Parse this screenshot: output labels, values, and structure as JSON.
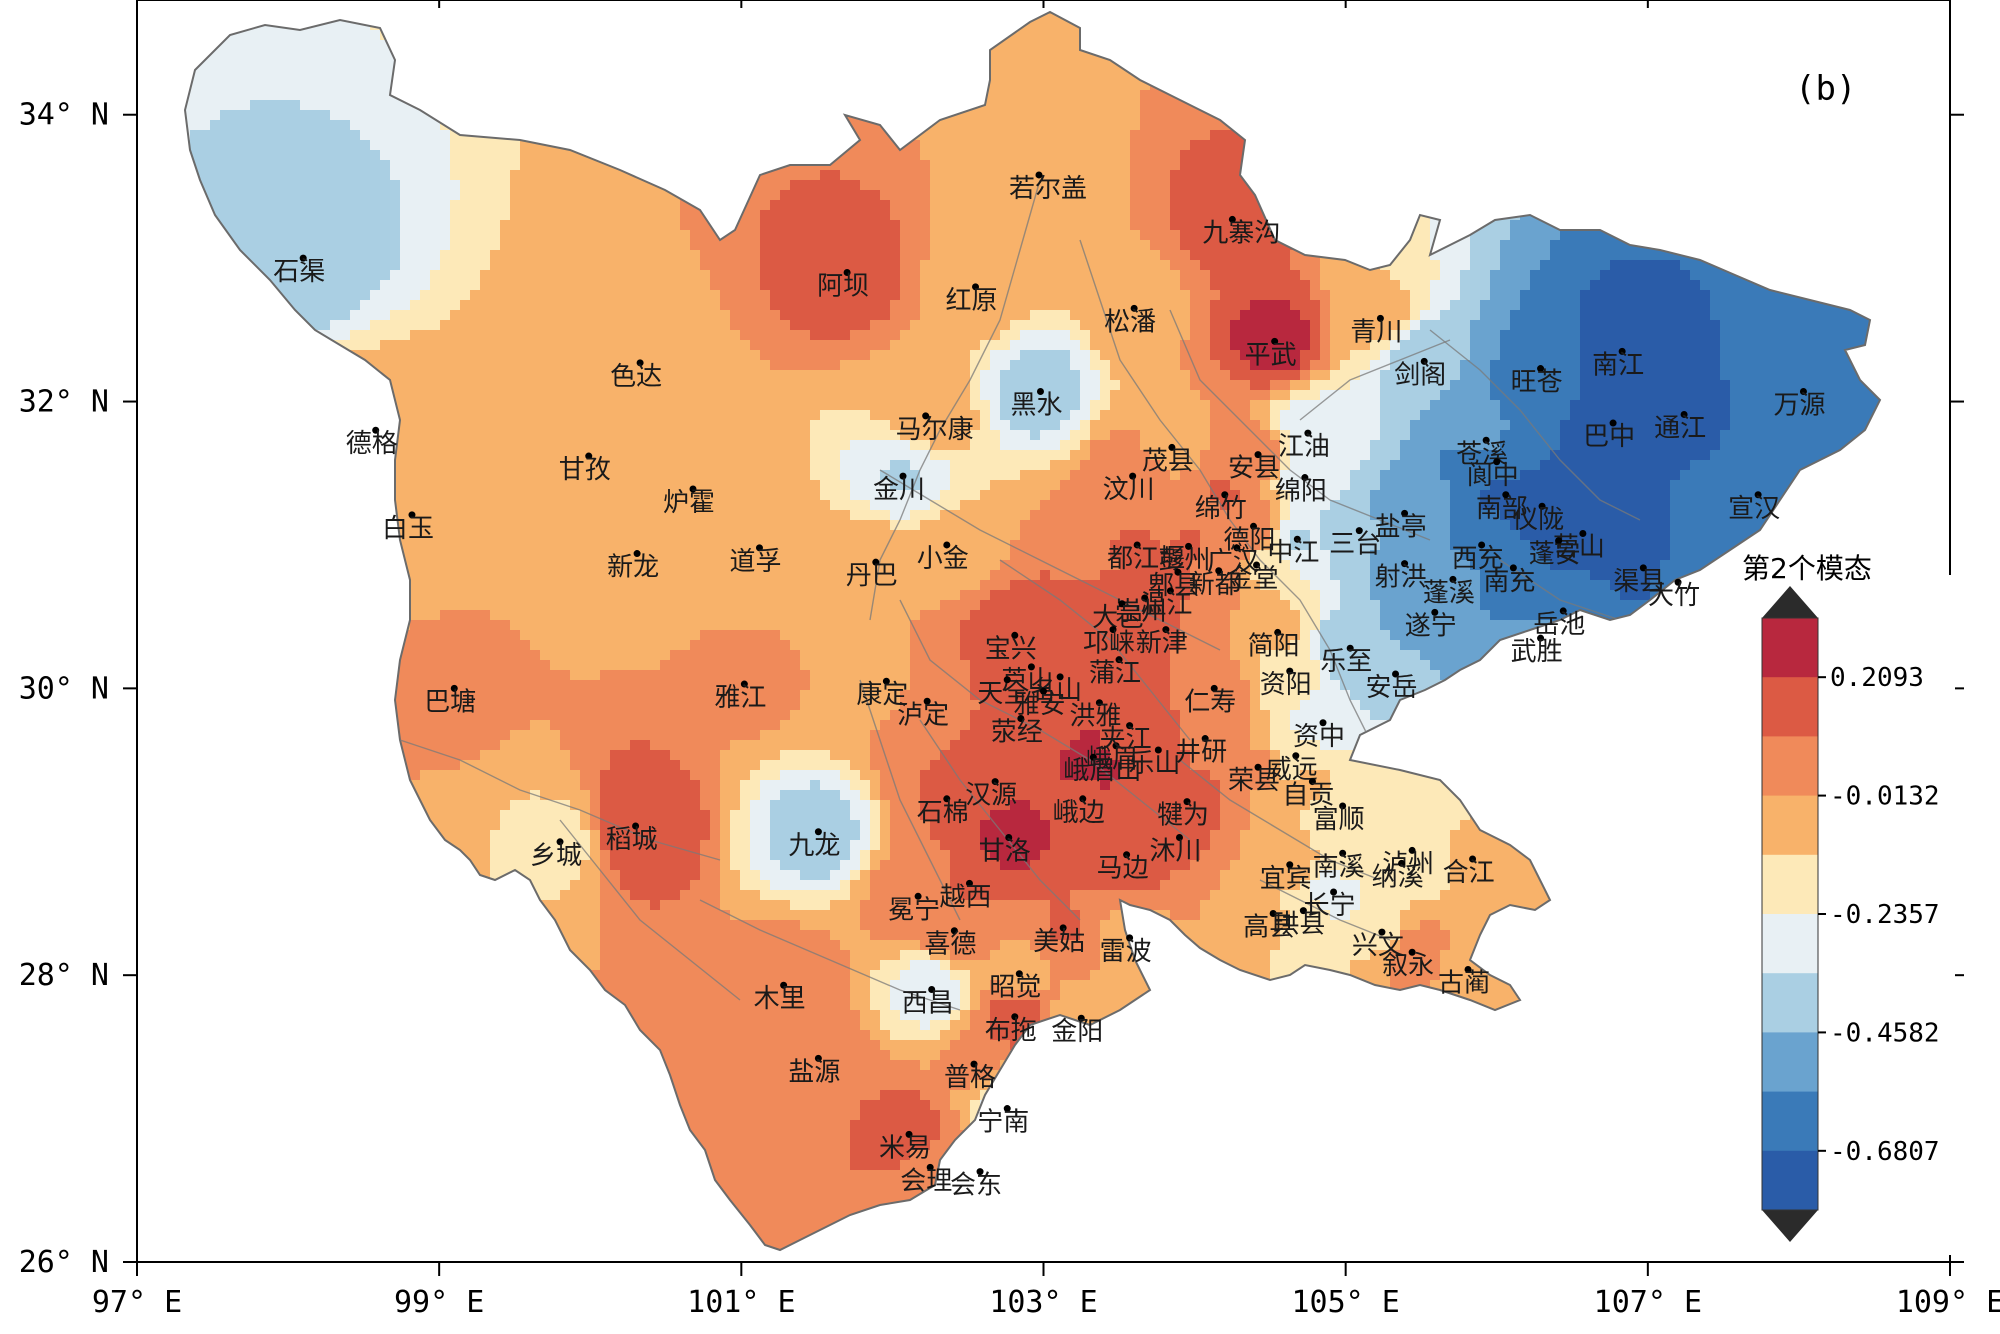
{
  "panel_label": "(b)",
  "axes": {
    "lon_min": 97,
    "lon_max": 109,
    "lat_min": 26,
    "lat_max": 34.8,
    "x_ticks": [
      "97° E",
      "99° E",
      "101° E",
      "103° E",
      "105° E",
      "107° E",
      "109° E"
    ],
    "x_tick_values": [
      97,
      99,
      101,
      103,
      105,
      107,
      109
    ],
    "y_ticks": [
      "26° N",
      "28° N",
      "30° N",
      "32° N",
      "34° N"
    ],
    "y_tick_values": [
      26,
      28,
      30,
      32,
      34
    ]
  },
  "colorbar": {
    "title": "第2个模态",
    "colors": [
      "#2a5ca8",
      "#3a7ab8",
      "#6aa3cf",
      "#aacfe3",
      "#e8f0f4",
      "#fde9b8",
      "#f8b26a",
      "#f08a5a",
      "#dc5a44",
      "#b8283e"
    ],
    "labels": [
      "0.2093",
      "-0.0132",
      "-0.2357",
      "-0.4582",
      "-0.6807"
    ],
    "label_values": [
      0.2093,
      -0.0132,
      -0.2357,
      -0.4582,
      -0.6807
    ],
    "min": -0.7919,
    "max": 0.3205
  },
  "cities": [
    {
      "name": "石渠",
      "lon": 98.1,
      "lat": 33.0,
      "v": -0.4
    },
    {
      "name": "若尔盖",
      "lon": 102.97,
      "lat": 33.58,
      "v": -0.05
    },
    {
      "name": "阿坝",
      "lon": 101.7,
      "lat": 32.9,
      "v": 0.15
    },
    {
      "name": "红原",
      "lon": 102.55,
      "lat": 32.8,
      "v": -0.05
    },
    {
      "name": "九寨沟",
      "lon": 104.25,
      "lat": 33.27,
      "v": 0.15
    },
    {
      "name": "松潘",
      "lon": 103.6,
      "lat": 32.65,
      "v": -0.05
    },
    {
      "name": "色达",
      "lon": 100.33,
      "lat": 32.27,
      "v": -0.05
    },
    {
      "name": "平武",
      "lon": 104.53,
      "lat": 32.42,
      "v": 0.25
    },
    {
      "name": "青川",
      "lon": 105.23,
      "lat": 32.58,
      "v": -0.1
    },
    {
      "name": "黑水",
      "lon": 102.98,
      "lat": 32.07,
      "v": -0.4
    },
    {
      "name": "剑阁",
      "lon": 105.52,
      "lat": 32.28,
      "v": -0.45
    },
    {
      "name": "旺苍",
      "lon": 106.29,
      "lat": 32.23,
      "v": -0.6
    },
    {
      "name": "南江",
      "lon": 106.83,
      "lat": 32.35,
      "v": -0.75
    },
    {
      "name": "德格",
      "lon": 98.58,
      "lat": 31.8,
      "v": -0.05
    },
    {
      "name": "马尔康",
      "lon": 102.22,
      "lat": 31.9,
      "v": -0.05
    },
    {
      "name": "茂县",
      "lon": 103.85,
      "lat": 31.68,
      "v": -0.05
    },
    {
      "name": "安县",
      "lon": 104.42,
      "lat": 31.63,
      "v": 0.05
    },
    {
      "name": "江油",
      "lon": 104.75,
      "lat": 31.78,
      "v": -0.3
    },
    {
      "name": "苍溪",
      "lon": 105.93,
      "lat": 31.73,
      "v": -0.55
    },
    {
      "name": "阆中",
      "lon": 106.0,
      "lat": 31.58,
      "v": -0.65
    },
    {
      "name": "巴中",
      "lon": 106.77,
      "lat": 31.85,
      "v": -0.75
    },
    {
      "name": "通江",
      "lon": 107.24,
      "lat": 31.91,
      "v": -0.7
    },
    {
      "name": "万源",
      "lon": 108.03,
      "lat": 32.07,
      "v": -0.6
    },
    {
      "name": "甘孜",
      "lon": 99.99,
      "lat": 31.62,
      "v": -0.05
    },
    {
      "name": "金川",
      "lon": 102.07,
      "lat": 31.48,
      "v": -0.35
    },
    {
      "name": "汶川",
      "lon": 103.59,
      "lat": 31.48,
      "v": 0.05
    },
    {
      "name": "绵竹",
      "lon": 104.2,
      "lat": 31.35,
      "v": 0.1
    },
    {
      "name": "德阳",
      "lon": 104.39,
      "lat": 31.13,
      "v": 0.05
    },
    {
      "name": "绵阳",
      "lon": 104.73,
      "lat": 31.47,
      "v": -0.3
    },
    {
      "name": "盐亭",
      "lon": 105.39,
      "lat": 31.22,
      "v": -0.5
    },
    {
      "name": "仪陇",
      "lon": 106.3,
      "lat": 31.27,
      "v": -0.75
    },
    {
      "name": "宣汉",
      "lon": 107.73,
      "lat": 31.35,
      "v": -0.6
    },
    {
      "name": "白玉",
      "lon": 98.82,
      "lat": 31.21,
      "v": -0.05
    },
    {
      "name": "炉霍",
      "lon": 100.68,
      "lat": 31.39,
      "v": -0.05
    },
    {
      "name": "小金",
      "lon": 102.36,
      "lat": 31.0,
      "v": -0.1
    },
    {
      "name": "都江堰",
      "lon": 103.62,
      "lat": 31.0,
      "v": 0.1
    },
    {
      "name": "彭州",
      "lon": 103.96,
      "lat": 30.99,
      "v": 0.1
    },
    {
      "name": "广汉",
      "lon": 104.28,
      "lat": 30.98,
      "v": 0.05
    },
    {
      "name": "中江",
      "lon": 104.68,
      "lat": 31.04,
      "v": -0.35
    },
    {
      "name": "三台",
      "lon": 105.09,
      "lat": 31.1,
      "v": -0.45
    },
    {
      "name": "南部",
      "lon": 106.06,
      "lat": 31.35,
      "v": -0.7
    },
    {
      "name": "营山",
      "lon": 106.57,
      "lat": 31.08,
      "v": -0.75
    },
    {
      "name": "西充",
      "lon": 105.9,
      "lat": 31.0,
      "v": -0.6
    },
    {
      "name": "南充",
      "lon": 106.11,
      "lat": 30.84,
      "v": -0.65
    },
    {
      "name": "渠县",
      "lon": 106.97,
      "lat": 30.84,
      "v": -0.7
    },
    {
      "name": "大竹",
      "lon": 107.2,
      "lat": 30.74,
      "v": -0.65
    },
    {
      "name": "新龙",
      "lon": 100.31,
      "lat": 30.94,
      "v": -0.05
    },
    {
      "name": "道孚",
      "lon": 101.12,
      "lat": 30.98,
      "v": -0.05
    },
    {
      "name": "丹巴",
      "lon": 101.89,
      "lat": 30.88,
      "v": -0.05
    },
    {
      "name": "宝兴",
      "lon": 102.81,
      "lat": 30.37,
      "v": 0.15
    },
    {
      "name": "崇州",
      "lon": 103.67,
      "lat": 30.63,
      "v": 0.1
    },
    {
      "name": "郫县",
      "lon": 103.89,
      "lat": 30.81,
      "v": 0.1
    },
    {
      "name": "新都",
      "lon": 104.16,
      "lat": 30.82,
      "v": 0.05
    },
    {
      "name": "金堂",
      "lon": 104.41,
      "lat": 30.86,
      "v": -0.15
    },
    {
      "name": "射洪",
      "lon": 105.39,
      "lat": 30.87,
      "v": -0.5
    },
    {
      "name": "蓬溪",
      "lon": 105.71,
      "lat": 30.76,
      "v": -0.55
    },
    {
      "name": "蓬安",
      "lon": 106.41,
      "lat": 31.03,
      "v": -0.7
    },
    {
      "name": "岳池",
      "lon": 106.44,
      "lat": 30.54,
      "v": -0.6
    },
    {
      "name": "武胜",
      "lon": 106.29,
      "lat": 30.35,
      "v": -0.55
    },
    {
      "name": "芦山",
      "lon": 102.92,
      "lat": 30.15,
      "v": 0.2
    },
    {
      "name": "大邑",
      "lon": 103.52,
      "lat": 30.59,
      "v": 0.1
    },
    {
      "name": "温江",
      "lon": 103.84,
      "lat": 30.68,
      "v": 0.1
    },
    {
      "name": "新津",
      "lon": 103.81,
      "lat": 30.41,
      "v": 0.1
    },
    {
      "name": "简阳",
      "lon": 104.55,
      "lat": 30.39,
      "v": -0.1
    },
    {
      "name": "资阳",
      "lon": 104.63,
      "lat": 30.12,
      "v": -0.2
    },
    {
      "name": "乐至",
      "lon": 105.03,
      "lat": 30.28,
      "v": -0.45
    },
    {
      "name": "遂宁",
      "lon": 105.59,
      "lat": 30.53,
      "v": -0.55
    },
    {
      "name": "康定",
      "lon": 101.96,
      "lat": 30.05,
      "v": -0.05
    },
    {
      "name": "名山",
      "lon": 103.11,
      "lat": 30.08,
      "v": 0.1
    },
    {
      "name": "邛崃",
      "lon": 103.46,
      "lat": 30.41,
      "v": 0.1
    },
    {
      "name": "天全",
      "lon": 102.76,
      "lat": 30.06,
      "v": 0.1
    },
    {
      "name": "雅安",
      "lon": 103.0,
      "lat": 29.98,
      "v": 0.1
    },
    {
      "name": "洪雅",
      "lon": 103.37,
      "lat": 29.9,
      "v": 0.15
    },
    {
      "name": "蒲江",
      "lon": 103.5,
      "lat": 30.2,
      "v": 0.15
    },
    {
      "name": "仁寿",
      "lon": 104.13,
      "lat": 30.0,
      "v": 0.05
    },
    {
      "name": "资中",
      "lon": 104.85,
      "lat": 29.76,
      "v": -0.3
    },
    {
      "name": "安岳",
      "lon": 105.33,
      "lat": 30.1,
      "v": -0.45
    },
    {
      "name": "巴塘",
      "lon": 99.1,
      "lat": 30.0,
      "v": 0.0
    },
    {
      "name": "雅江",
      "lon": 101.02,
      "lat": 30.03,
      "v": 0.0
    },
    {
      "name": "泸定",
      "lon": 102.23,
      "lat": 29.91,
      "v": 0.05
    },
    {
      "name": "荥经",
      "lon": 102.85,
      "lat": 29.79,
      "v": 0.1
    },
    {
      "name": "峨眉",
      "lon": 103.48,
      "lat": 29.6,
      "v": 0.2
    },
    {
      "name": "夹江",
      "lon": 103.57,
      "lat": 29.74,
      "v": 0.15
    },
    {
      "name": "井研",
      "lon": 104.07,
      "lat": 29.65,
      "v": 0.05
    },
    {
      "name": "荣县",
      "lon": 104.42,
      "lat": 29.45,
      "v": 0.0
    },
    {
      "name": "威远",
      "lon": 104.67,
      "lat": 29.53,
      "v": -0.2
    },
    {
      "name": "汉源",
      "lon": 102.68,
      "lat": 29.35,
      "v": 0.2
    },
    {
      "name": "峨眉山",
      "lon": 103.33,
      "lat": 29.52,
      "v": 0.25
    },
    {
      "name": "犍为",
      "lon": 103.95,
      "lat": 29.21,
      "v": 0.15
    },
    {
      "name": "自贡",
      "lon": 104.78,
      "lat": 29.35,
      "v": -0.1
    },
    {
      "name": "富顺",
      "lon": 104.98,
      "lat": 29.18,
      "v": -0.2
    },
    {
      "name": "石棉",
      "lon": 102.36,
      "lat": 29.23,
      "v": 0.1
    },
    {
      "name": "甘洛",
      "lon": 102.77,
      "lat": 28.96,
      "v": 0.25
    },
    {
      "name": "峨边",
      "lon": 103.26,
      "lat": 29.23,
      "v": 0.2
    },
    {
      "name": "乐山",
      "lon": 103.76,
      "lat": 29.57,
      "v": 0.15
    },
    {
      "name": "宜宾",
      "lon": 104.63,
      "lat": 28.77,
      "v": -0.05
    },
    {
      "name": "南溪",
      "lon": 104.98,
      "lat": 28.85,
      "v": -0.15
    },
    {
      "name": "泸州",
      "lon": 105.44,
      "lat": 28.87,
      "v": -0.2
    },
    {
      "name": "合江",
      "lon": 105.84,
      "lat": 28.81,
      "v": -0.1
    },
    {
      "name": "乡城",
      "lon": 99.8,
      "lat": 28.93,
      "v": -0.15
    },
    {
      "name": "稻城",
      "lon": 100.3,
      "lat": 29.04,
      "v": 0.2
    },
    {
      "name": "九龙",
      "lon": 101.51,
      "lat": 29.0,
      "v": -0.4
    },
    {
      "name": "越西",
      "lon": 102.51,
      "lat": 28.64,
      "v": 0.1
    },
    {
      "name": "马边",
      "lon": 103.55,
      "lat": 28.84,
      "v": 0.15
    },
    {
      "name": "沐川",
      "lon": 103.9,
      "lat": 28.96,
      "v": 0.1
    },
    {
      "name": "纳溪",
      "lon": 105.37,
      "lat": 28.78,
      "v": -0.15
    },
    {
      "name": "冕宁",
      "lon": 102.17,
      "lat": 28.55,
      "v": 0.05
    },
    {
      "name": "美姑",
      "lon": 103.13,
      "lat": 28.33,
      "v": 0.1
    },
    {
      "name": "高县",
      "lon": 104.52,
      "lat": 28.43,
      "v": -0.1
    },
    {
      "name": "长宁",
      "lon": 104.92,
      "lat": 28.58,
      "v": -0.3
    },
    {
      "name": "兴文",
      "lon": 105.24,
      "lat": 28.3,
      "v": -0.15
    },
    {
      "name": "喜德",
      "lon": 102.41,
      "lat": 28.31,
      "v": 0.05
    },
    {
      "name": "雷波",
      "lon": 103.57,
      "lat": 28.26,
      "v": -0.05
    },
    {
      "name": "珙县",
      "lon": 104.72,
      "lat": 28.45,
      "v": -0.2
    },
    {
      "name": "叙永",
      "lon": 105.44,
      "lat": 28.16,
      "v": 0.05
    },
    {
      "name": "古蔺",
      "lon": 105.81,
      "lat": 28.04,
      "v": -0.05
    },
    {
      "name": "木里",
      "lon": 101.28,
      "lat": 27.93,
      "v": 0.05
    },
    {
      "name": "西昌",
      "lon": 102.26,
      "lat": 27.9,
      "v": -0.3
    },
    {
      "name": "昭觉",
      "lon": 102.84,
      "lat": 28.01,
      "v": -0.05
    },
    {
      "name": "布拖",
      "lon": 102.81,
      "lat": 27.71,
      "v": 0.15
    },
    {
      "name": "金阳",
      "lon": 103.25,
      "lat": 27.7,
      "v": -0.05
    },
    {
      "name": "盐源",
      "lon": 101.51,
      "lat": 27.42,
      "v": 0.05
    },
    {
      "name": "普格",
      "lon": 102.54,
      "lat": 27.38,
      "v": 0.0
    },
    {
      "name": "宁南",
      "lon": 102.76,
      "lat": 27.07,
      "v": -0.3
    },
    {
      "name": "米易",
      "lon": 102.11,
      "lat": 26.89,
      "v": 0.15
    },
    {
      "name": "会理",
      "lon": 102.25,
      "lat": 26.66,
      "v": 0.05
    },
    {
      "name": "会东",
      "lon": 102.58,
      "lat": 26.63,
      "v": 0.05
    }
  ]
}
